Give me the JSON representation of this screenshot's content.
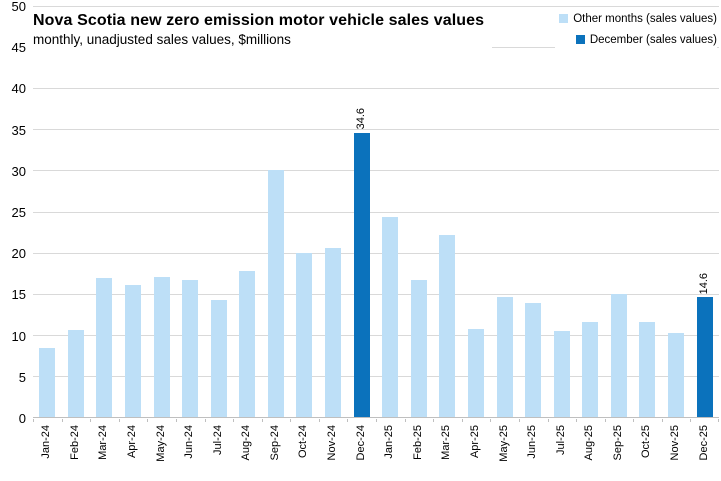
{
  "chart_data": {
    "type": "bar",
    "title": "Nova Scotia new zero emission motor vehicle sales values",
    "subtitle": "monthly, unadjusted sales values, $millions",
    "categories": [
      "Jan-24",
      "Feb-24",
      "Mar-24",
      "Apr-24",
      "May-24",
      "Jun-24",
      "Jul-24",
      "Aug-24",
      "Sep-24",
      "Oct-24",
      "Nov-24",
      "Dec-24",
      "Jan-25",
      "Feb-25",
      "Mar-25",
      "Apr-25",
      "May-25",
      "Jun-25",
      "Jul-25",
      "Aug-25",
      "Sep-25",
      "Oct-25",
      "Nov-25",
      "Dec-25"
    ],
    "values": [
      8.4,
      10.6,
      16.9,
      16.0,
      17.0,
      16.7,
      14.2,
      17.8,
      30.0,
      20.0,
      20.6,
      34.6,
      24.3,
      16.7,
      22.1,
      10.7,
      14.6,
      13.9,
      10.5,
      11.5,
      15.0,
      11.6,
      10.2,
      14.6
    ],
    "december_indices": [
      11,
      23
    ],
    "data_labels": [
      {
        "index": 11,
        "text": "34.6"
      },
      {
        "index": 23,
        "text": "14.6"
      }
    ],
    "ylim": [
      0,
      50
    ],
    "ytick_step": 5,
    "grid": true,
    "legend_position": "top-right",
    "legend": [
      {
        "label": "Other months (sales values)",
        "color": "#bddff7"
      },
      {
        "label": "December (sales values)",
        "color": "#0b72bc"
      }
    ],
    "colors": {
      "other_months": "#bddff7",
      "december": "#0b72bc",
      "gridline": "#d9d9d9",
      "axis": "#bfbfbf",
      "text": "#000000"
    }
  }
}
